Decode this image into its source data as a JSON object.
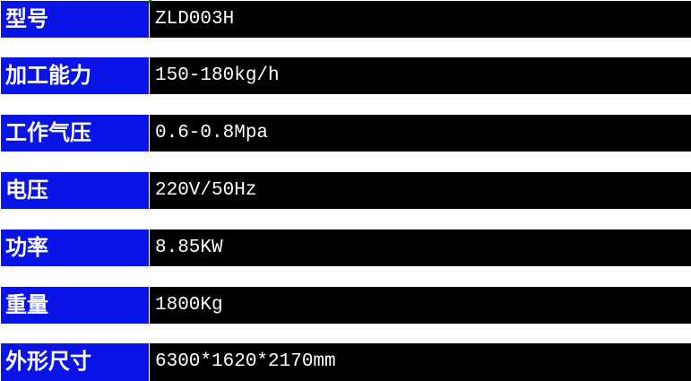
{
  "specs": [
    {
      "label": "型号",
      "value": "ZLD003H"
    },
    {
      "label": "加工能力",
      "value": "150-180kg/h"
    },
    {
      "label": "工作气压",
      "value": "0.6-0.8Mpa"
    },
    {
      "label": "电压",
      "value": "220V/50Hz"
    },
    {
      "label": "功率",
      "value": "8.85KW"
    },
    {
      "label": "重量",
      "value": "1800Kg"
    },
    {
      "label": "外形尺寸",
      "value": "6300*1620*2170mm"
    }
  ],
  "colors": {
    "label_bg": "#0a14e6",
    "value_bg": "#000000",
    "text": "#ffffff"
  }
}
